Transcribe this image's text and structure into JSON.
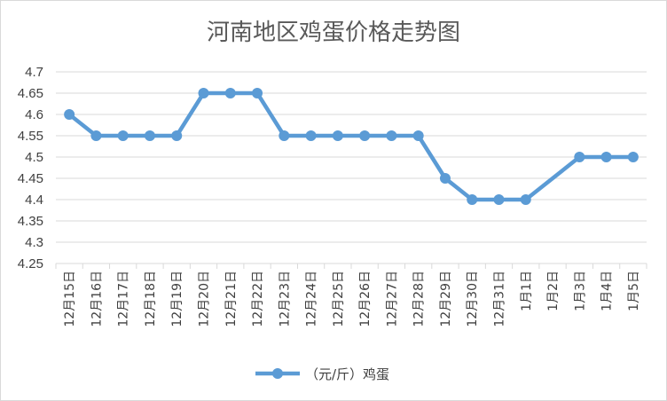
{
  "chart_data": {
    "type": "line",
    "title": "河南地区鸡蛋价格走势图",
    "xlabel": "",
    "ylabel": "",
    "categories": [
      "12月15日",
      "12月16日",
      "12月17日",
      "12月18日",
      "12月19日",
      "12月20日",
      "12月21日",
      "12月22日",
      "12月23日",
      "12月24日",
      "12月25日",
      "12月26日",
      "12月27日",
      "12月28日",
      "12月29日",
      "12月30日",
      "12月31日",
      "1月1日",
      "1月2日",
      "1月3日",
      "1月4日",
      "1月5日"
    ],
    "series": [
      {
        "name": "（元/斤）鸡蛋",
        "values": [
          4.6,
          4.55,
          4.55,
          4.55,
          4.55,
          4.65,
          4.65,
          4.65,
          4.55,
          4.55,
          4.55,
          4.55,
          4.55,
          4.55,
          4.45,
          4.4,
          4.4,
          4.4,
          null,
          4.5,
          4.5,
          4.5
        ]
      }
    ],
    "ylim": [
      4.25,
      4.7
    ],
    "yticks": [
      "4.25",
      "4.3",
      "4.35",
      "4.4",
      "4.45",
      "4.5",
      "4.55",
      "4.6",
      "4.65",
      "4.7"
    ],
    "grid": true,
    "legend": "bottom",
    "series_color": "#5b9bd5",
    "grid_color": "#d9d9d9"
  }
}
